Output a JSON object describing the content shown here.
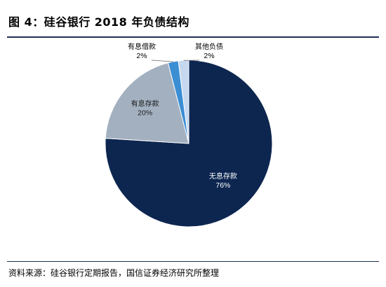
{
  "header": {
    "title": "图 4：硅谷银行 2018 年负债结构"
  },
  "footer": {
    "source": "资料来源：硅谷银行定期报告，国信证券经济研究所整理"
  },
  "colors": {
    "rule": "#1f2f56"
  },
  "chart_data": {
    "type": "pie",
    "title": "",
    "slices": [
      {
        "name": "无息存款",
        "value": 76,
        "label": "76%",
        "color": "#0d2650"
      },
      {
        "name": "有息存款",
        "value": 20,
        "label": "20%",
        "color": "#a3b0c0"
      },
      {
        "name": "有息借款",
        "value": 2,
        "label": "2%",
        "color": "#3c8ed3"
      },
      {
        "name": "其他负债",
        "value": 2,
        "label": "2%",
        "color": "#c5d8f0"
      }
    ]
  }
}
